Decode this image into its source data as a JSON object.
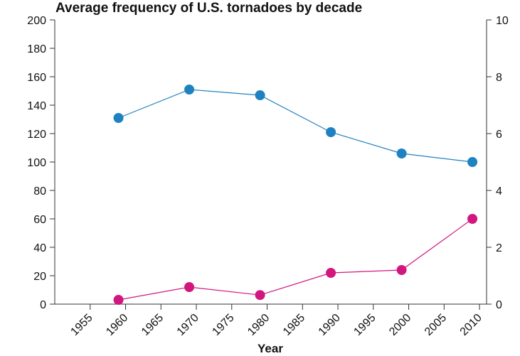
{
  "chart_data": {
    "type": "line",
    "title": "Average frequency of U.S. tornadoes by decade",
    "xlabel": "Year",
    "ylabel": "",
    "y2label": "",
    "xlim": [
      1950,
      2011
    ],
    "ylim": [
      0,
      200
    ],
    "y2lim": [
      0,
      10
    ],
    "grid": false,
    "x_ticks": [
      1955,
      1960,
      1965,
      1970,
      1975,
      1980,
      1985,
      1990,
      1995,
      2000,
      2005,
      2010
    ],
    "y_ticks": [
      0,
      20,
      40,
      60,
      80,
      100,
      120,
      140,
      160,
      180,
      200
    ],
    "y2_ticks": [
      0,
      2,
      4,
      6,
      8,
      10
    ],
    "series": [
      {
        "axis": "left",
        "color": "#1f82c0",
        "x": [
          1959,
          1969,
          1979,
          1989,
          1999,
          2009
        ],
        "values": [
          131,
          151,
          147,
          121,
          106,
          100
        ]
      },
      {
        "axis": "right",
        "color": "#d1177f",
        "x": [
          1959,
          1969,
          1979,
          1989,
          1999,
          2009
        ],
        "values": [
          0.15,
          0.6,
          0.32,
          1.1,
          1.2,
          3.0
        ]
      }
    ]
  }
}
